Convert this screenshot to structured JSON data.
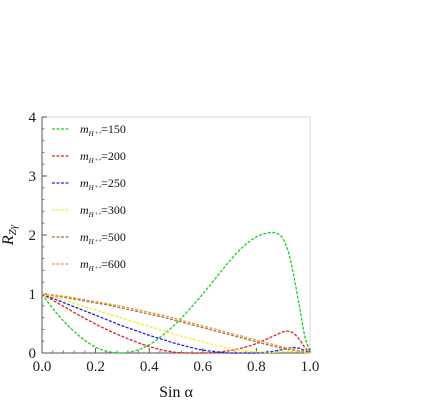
{
  "chart_data": {
    "type": "line",
    "title": "",
    "xlabel": "Sin α",
    "ylabel": {
      "main": "R",
      "sub": "Zγ"
    },
    "xlim": [
      0,
      1
    ],
    "ylim": [
      0,
      4
    ],
    "xticks": [
      "0.0",
      "0.2",
      "0.4",
      "0.6",
      "0.8",
      "1.0"
    ],
    "yticks": [
      "0",
      "1",
      "2",
      "3",
      "4"
    ],
    "grid": false,
    "legend_placement": "top-left",
    "legend_prefix": "m",
    "legend_sub": "H⁺⁺",
    "series": [
      {
        "name": "=150",
        "color": "#22cc22",
        "x": [
          0,
          0.05,
          0.1,
          0.15,
          0.2,
          0.25,
          0.3,
          0.35,
          0.4,
          0.45,
          0.5,
          0.55,
          0.6,
          0.65,
          0.7,
          0.75,
          0.8,
          0.85,
          0.88,
          0.9,
          0.92,
          0.94,
          0.96,
          0.98,
          1.0
        ],
        "y": [
          1.0,
          0.7,
          0.45,
          0.25,
          0.1,
          0.02,
          0.0,
          0.04,
          0.14,
          0.3,
          0.5,
          0.74,
          1.0,
          1.28,
          1.56,
          1.8,
          1.97,
          2.04,
          2.02,
          1.93,
          1.7,
          1.3,
          0.8,
          0.3,
          0.0
        ]
      },
      {
        "name": "=200",
        "color": "#dd2222",
        "x": [
          0,
          0.05,
          0.1,
          0.15,
          0.2,
          0.25,
          0.3,
          0.35,
          0.4,
          0.45,
          0.5,
          0.55,
          0.6,
          0.65,
          0.7,
          0.75,
          0.8,
          0.85,
          0.88,
          0.9,
          0.92,
          0.94,
          0.96,
          0.98,
          1.0
        ],
        "y": [
          1.0,
          0.87,
          0.74,
          0.61,
          0.49,
          0.38,
          0.28,
          0.19,
          0.11,
          0.05,
          0.01,
          0.0,
          0.0,
          0.01,
          0.04,
          0.09,
          0.16,
          0.26,
          0.32,
          0.36,
          0.37,
          0.33,
          0.23,
          0.1,
          0.0
        ]
      },
      {
        "name": "=250",
        "color": "#2222dd",
        "x": [
          0,
          0.05,
          0.1,
          0.15,
          0.2,
          0.25,
          0.3,
          0.35,
          0.4,
          0.45,
          0.5,
          0.55,
          0.6,
          0.65,
          0.7,
          0.75,
          0.8,
          0.85,
          0.9,
          0.92,
          0.94,
          0.96,
          0.98,
          1.0
        ],
        "y": [
          1.0,
          0.91,
          0.82,
          0.73,
          0.64,
          0.55,
          0.46,
          0.38,
          0.3,
          0.23,
          0.16,
          0.1,
          0.05,
          0.02,
          0.0,
          0.0,
          0.0,
          0.02,
          0.06,
          0.08,
          0.09,
          0.08,
          0.04,
          0.0
        ]
      },
      {
        "name": "=300",
        "color": "#f0f030",
        "x": [
          0,
          0.05,
          0.1,
          0.15,
          0.2,
          0.25,
          0.3,
          0.35,
          0.4,
          0.45,
          0.5,
          0.55,
          0.6,
          0.65,
          0.7,
          0.75,
          0.8,
          0.85,
          0.9,
          0.95,
          1.0
        ],
        "y": [
          1.0,
          0.94,
          0.87,
          0.8,
          0.73,
          0.66,
          0.59,
          0.52,
          0.45,
          0.38,
          0.31,
          0.25,
          0.19,
          0.13,
          0.08,
          0.04,
          0.02,
          0.01,
          0.02,
          0.02,
          0.0
        ]
      },
      {
        "name": "=500",
        "color": "#a0724a",
        "x": [
          0,
          0.05,
          0.1,
          0.15,
          0.2,
          0.25,
          0.3,
          0.35,
          0.4,
          0.45,
          0.5,
          0.55,
          0.6,
          0.65,
          0.7,
          0.75,
          0.8,
          0.85,
          0.9,
          0.95,
          1.0
        ],
        "y": [
          1.0,
          0.97,
          0.93,
          0.89,
          0.85,
          0.81,
          0.76,
          0.71,
          0.66,
          0.61,
          0.55,
          0.49,
          0.43,
          0.37,
          0.31,
          0.25,
          0.19,
          0.13,
          0.08,
          0.04,
          0.0
        ]
      },
      {
        "name": "=600",
        "color": "#f09a3a",
        "x": [
          0,
          0.05,
          0.1,
          0.15,
          0.2,
          0.25,
          0.3,
          0.35,
          0.4,
          0.45,
          0.5,
          0.55,
          0.6,
          0.65,
          0.7,
          0.75,
          0.8,
          0.85,
          0.9,
          0.95,
          1.0
        ],
        "y": [
          1.0,
          0.98,
          0.95,
          0.91,
          0.87,
          0.83,
          0.79,
          0.74,
          0.69,
          0.64,
          0.58,
          0.52,
          0.46,
          0.4,
          0.34,
          0.28,
          0.22,
          0.16,
          0.1,
          0.05,
          0.0
        ]
      }
    ]
  }
}
